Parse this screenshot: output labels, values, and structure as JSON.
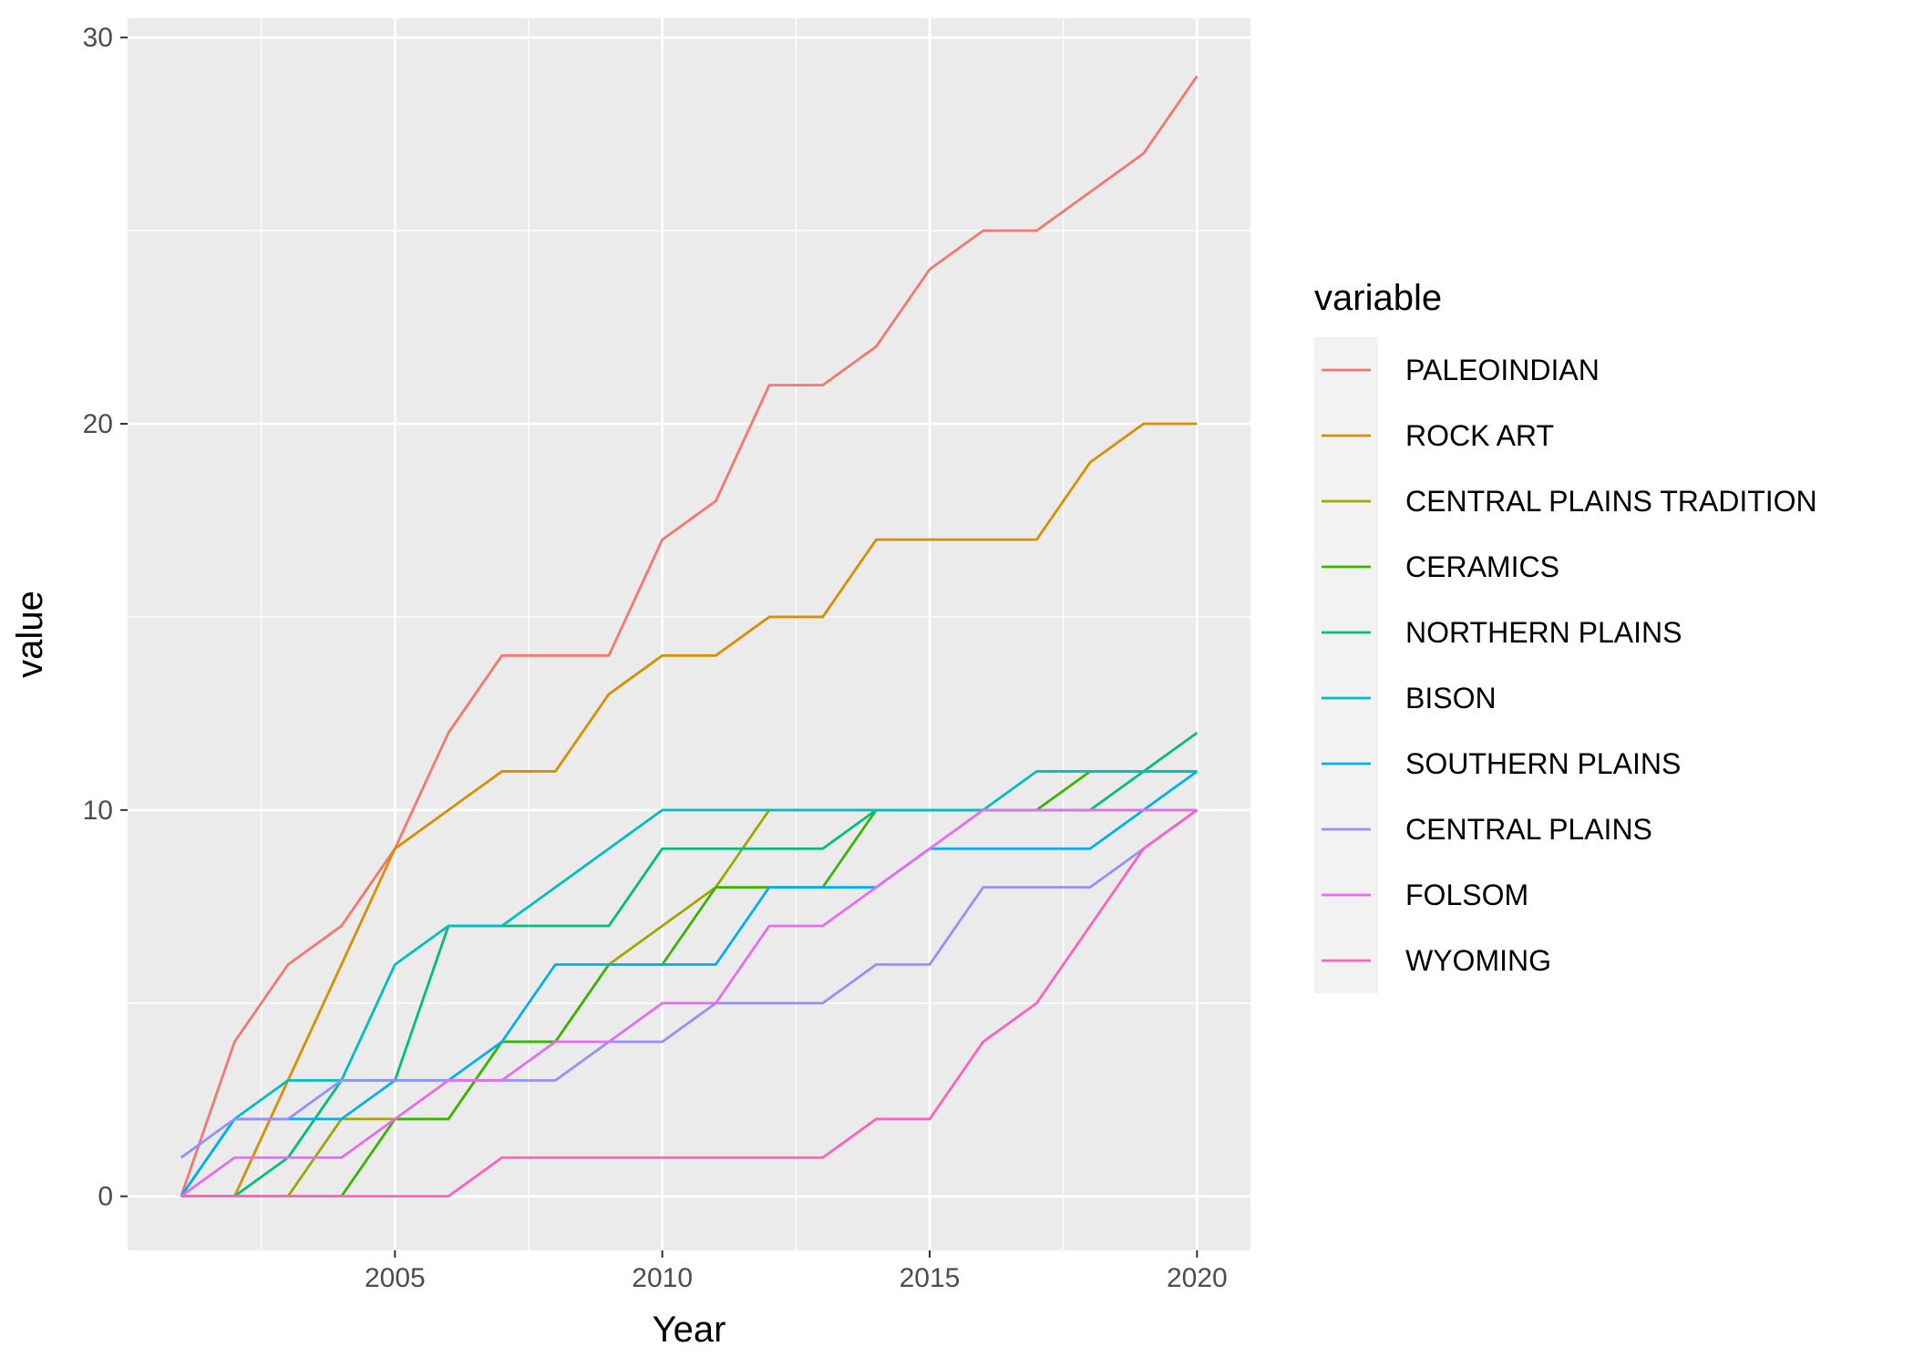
{
  "chart_data": {
    "type": "line",
    "xlabel": "Year",
    "ylabel": "value",
    "xlim": [
      2000,
      2021
    ],
    "ylim": [
      -1.4,
      30.5
    ],
    "x_ticks": [
      2005,
      2010,
      2015,
      2020
    ],
    "x_tick_labels": [
      "2005",
      "2010",
      "2015",
      "2020"
    ],
    "y_ticks": [
      0,
      10,
      20,
      30
    ],
    "y_tick_labels": [
      "0",
      "10",
      "20",
      "30"
    ],
    "grid": true,
    "legend_title": "variable",
    "legend_position": "right",
    "x": [
      2001,
      2002,
      2003,
      2004,
      2005,
      2006,
      2007,
      2008,
      2009,
      2010,
      2011,
      2012,
      2013,
      2014,
      2015,
      2016,
      2017,
      2018,
      2019,
      2020
    ],
    "series": [
      {
        "name": "PALEOINDIAN",
        "color": "#F8766D",
        "values": [
          0,
          4,
          6,
          7,
          9,
          12,
          14,
          14,
          14,
          17,
          18,
          21,
          21,
          22,
          24,
          25,
          25,
          26,
          27,
          29
        ]
      },
      {
        "name": "ROCK ART",
        "color": "#D89000",
        "values": [
          0,
          0,
          3,
          6,
          9,
          10,
          11,
          11,
          13,
          14,
          14,
          15,
          15,
          17,
          17,
          17,
          17,
          19,
          20,
          20
        ]
      },
      {
        "name": "CENTRAL PLAINS TRADITION",
        "color": "#A3A500",
        "values": [
          0,
          0,
          0,
          2,
          2,
          2,
          4,
          4,
          6,
          7,
          8,
          10,
          10,
          10,
          10,
          10,
          10,
          10,
          10,
          10
        ]
      },
      {
        "name": "CERAMICS",
        "color": "#39B600",
        "values": [
          0,
          0,
          0,
          0,
          2,
          2,
          4,
          4,
          6,
          6,
          8,
          8,
          8,
          10,
          10,
          10,
          10,
          11,
          11,
          11
        ]
      },
      {
        "name": "NORTHERN PLAINS",
        "color": "#00BF7D",
        "values": [
          0,
          0,
          1,
          3,
          3,
          7,
          7,
          7,
          7,
          9,
          9,
          9,
          9,
          10,
          10,
          10,
          10,
          10,
          11,
          12
        ]
      },
      {
        "name": "BISON",
        "color": "#00BFC4",
        "values": [
          0,
          2,
          3,
          3,
          6,
          7,
          7,
          8,
          9,
          10,
          10,
          10,
          10,
          10,
          10,
          10,
          11,
          11,
          11,
          11
        ]
      },
      {
        "name": "SOUTHERN PLAINS",
        "color": "#00B0F6",
        "values": [
          0,
          2,
          2,
          2,
          3,
          3,
          4,
          6,
          6,
          6,
          6,
          8,
          8,
          8,
          9,
          9,
          9,
          9,
          10,
          11
        ]
      },
      {
        "name": "CENTRAL PLAINS",
        "color": "#9590FF",
        "values": [
          1,
          2,
          2,
          3,
          3,
          3,
          3,
          3,
          4,
          4,
          5,
          5,
          5,
          6,
          6,
          8,
          8,
          8,
          9,
          10
        ]
      },
      {
        "name": "FOLSOM",
        "color": "#E76BF3",
        "values": [
          0,
          1,
          1,
          1,
          2,
          3,
          3,
          4,
          4,
          5,
          5,
          7,
          7,
          8,
          9,
          10,
          10,
          10,
          10,
          10
        ]
      },
      {
        "name": "WYOMING",
        "color": "#FF62BC",
        "values": [
          0,
          0,
          0,
          0,
          0,
          0,
          1,
          1,
          1,
          1,
          1,
          1,
          1,
          2,
          2,
          4,
          5,
          7,
          9,
          10
        ]
      }
    ]
  },
  "colors": {
    "panel_background": "#EBEBEB",
    "gridline": "#FFFFFF",
    "legend_key_background": "#F2F2F2"
  }
}
